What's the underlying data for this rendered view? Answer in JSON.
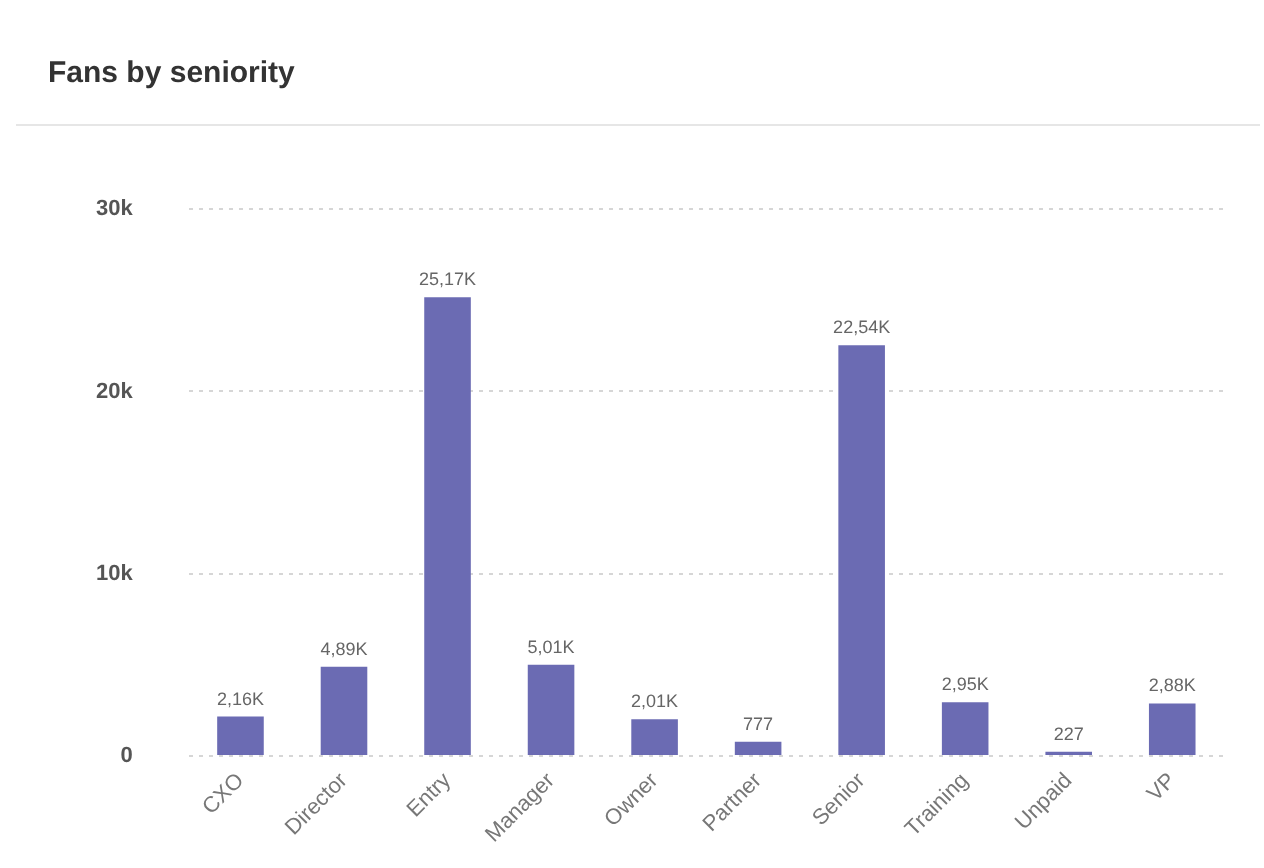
{
  "chart_data": {
    "type": "bar",
    "title": "Fans by seniority",
    "categories": [
      "CXO",
      "Director",
      "Entry",
      "Manager",
      "Owner",
      "Partner",
      "Senior",
      "Training",
      "Unpaid",
      "VP"
    ],
    "values": [
      2160,
      4890,
      25170,
      5010,
      2010,
      777,
      22540,
      2950,
      227,
      2880
    ],
    "value_labels": [
      "2,16K",
      "4,89K",
      "25,17K",
      "5,01K",
      "2,01K",
      "777",
      "22,54K",
      "2,95K",
      "227",
      "2,88K"
    ],
    "color": "#6b6bb3",
    "ylim": [
      0,
      30000
    ],
    "yticks": [
      0,
      {
        "value": 10000,
        "label": "10k"
      },
      {
        "value": 20000,
        "label": "20k"
      },
      {
        "value": 30000,
        "label": "30k"
      }
    ],
    "grid": "y"
  }
}
